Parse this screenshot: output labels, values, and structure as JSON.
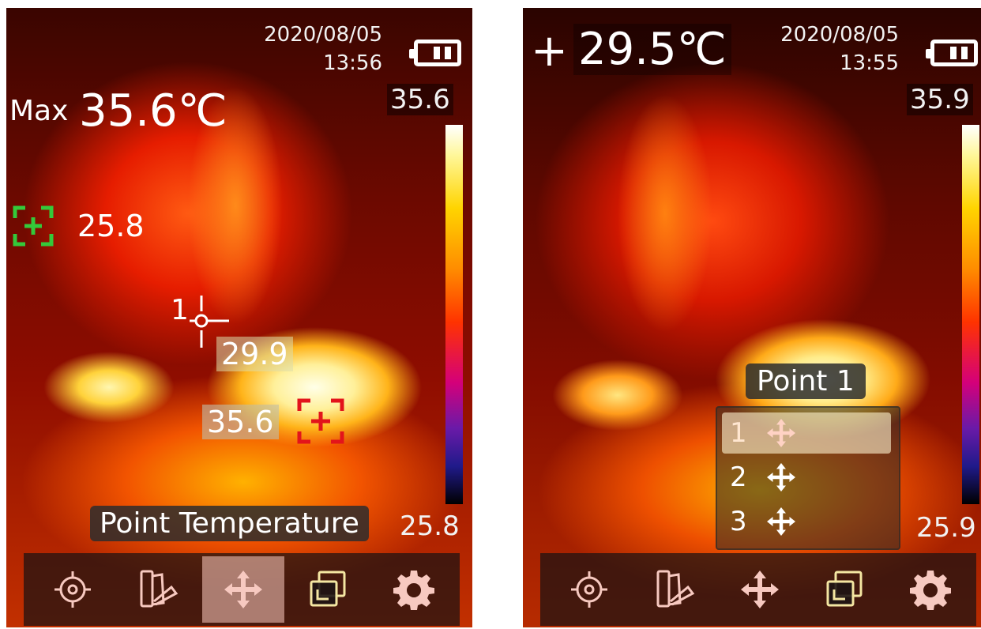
{
  "left_screen": {
    "date": "2020/08/05",
    "time": "13:56",
    "scale_max": "35.6",
    "scale_min": "25.8",
    "max_label": "Max",
    "max_value": "35.6℃",
    "cold_spot_reading": "25.8",
    "point1_label": "1",
    "point1_reading": "29.9",
    "hot_spot_reading": "35.6",
    "toast": "Point Temperature",
    "active_tool": "move"
  },
  "right_screen": {
    "date": "2020/08/05",
    "time": "13:55",
    "center_sign": "+",
    "center_value": "29.5℃",
    "scale_max": "35.9",
    "scale_min": "25.9",
    "menu_title": "Point 1",
    "menu_items": [
      {
        "label": "1",
        "selected": true
      },
      {
        "label": "2",
        "selected": false
      },
      {
        "label": "3",
        "selected": false
      }
    ]
  },
  "toolbar": {
    "items": [
      {
        "icon": "target-icon"
      },
      {
        "icon": "palette-icon"
      },
      {
        "icon": "move-icon"
      },
      {
        "icon": "image-gallery-icon"
      },
      {
        "icon": "gear-icon"
      }
    ]
  },
  "colors": {
    "cold_marker": "#34c93a",
    "hot_marker": "#e3141b",
    "icon_tint": "#f7c9c0",
    "icon_gallery_tint": "#f4e6a2"
  }
}
